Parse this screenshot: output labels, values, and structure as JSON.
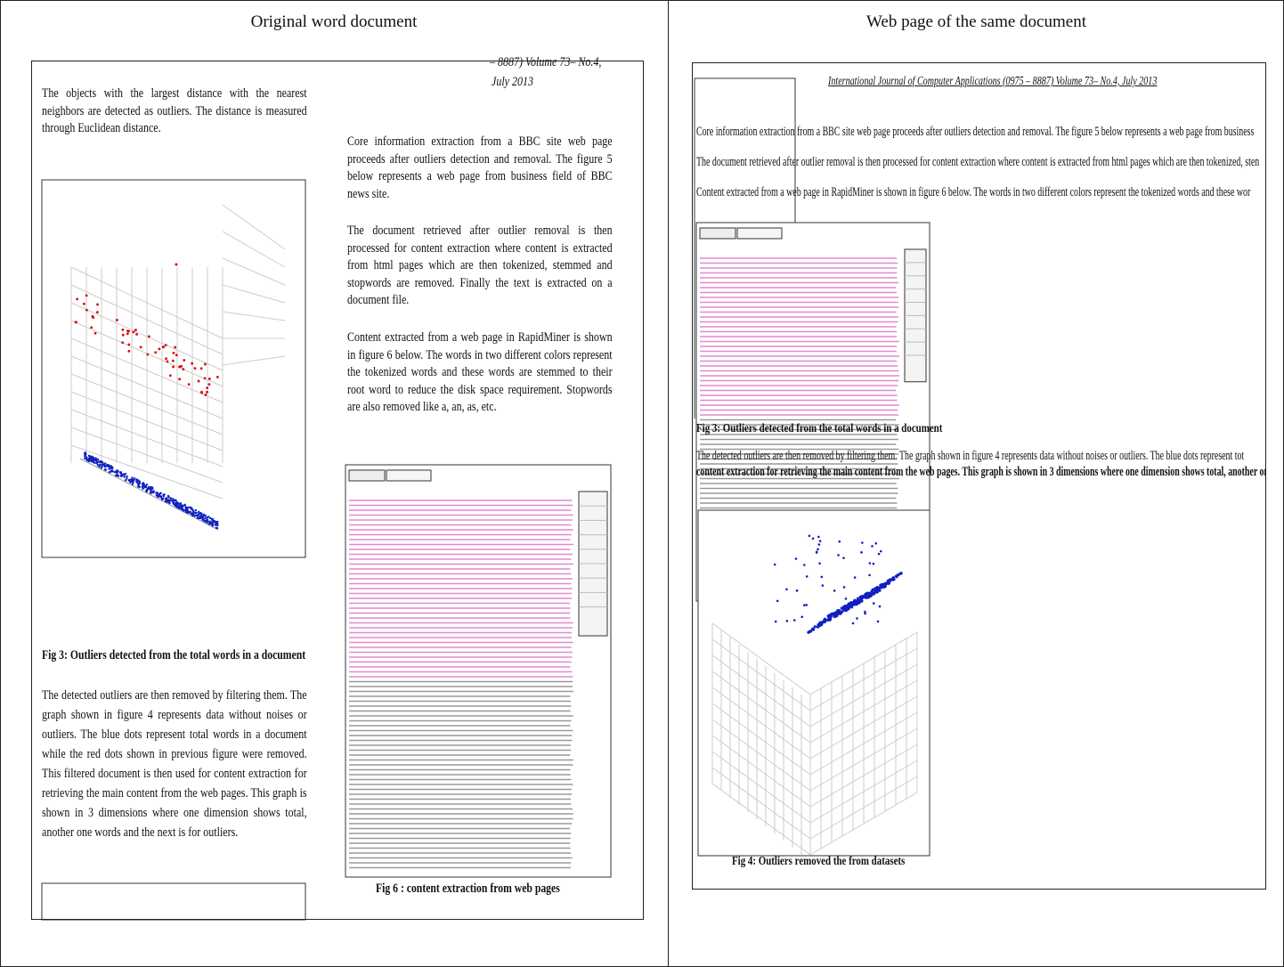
{
  "headings": [
    "Original word document",
    "Web page of the same document"
  ],
  "original": {
    "header_fragment": "– 8887) Volume 73– No.4,",
    "header_date": "July 2013",
    "left_paragraph": "The objects with the largest distance with the nearest neighbors are detected as outliers. The distance is measured through Euclidean distance.",
    "fig3_caption": "Fig 3: Outliers detected from the total words in a document",
    "left_paragraph2": "The detected outliers are then removed by filtering them. The graph shown in figure 4 represents data without noises or outliers. The blue dots represent total words in a document while the red dots shown in previous figure were removed. This filtered document is then used for content extraction for retrieving the main content from the web pages. This graph is shown in 3 dimensions where one dimension shows total, another one words and the next is for outliers.",
    "right_paragraphs": [
      "Core information extraction from a BBC site web page proceeds after outliers detection and removal. The figure 5 below represents a web page from business field of BBC news site.",
      "The document retrieved after outlier removal is then processed for content extraction where content is extracted from html pages which are then tokenized, stemmed and stopwords are removed. Finally the text is extracted on a document file.",
      "Content extracted from a web page in RapidMiner is shown in figure 6 below. The words in two different colors represent the tokenized words and these words are stemmed to their root word to reduce the disk space requirement. Stopwords are also removed like a, an, as, etc."
    ],
    "fig6_caption": "Fig 6 : content extraction from web pages"
  },
  "web": {
    "journal_header": "International Journal of Computer Applications (0975 – 8887) Volume 73– No.4, July 2013",
    "lines": [
      "Core information extraction from a BBC site web page proceeds after outliers detection and removal. The figure 5 below represents a web page from business",
      "The document retrieved after outlier removal is then processed for content extraction where content is extracted from html pages which are then tokenized, sten",
      "Content extracted from a web page in RapidMiner is shown in figure 6 below. The words in two different colors represent the tokenized words and these wor"
    ],
    "fig3_caption": "Fig 3: Outliers detected from the total words in a document",
    "lines2": [
      "The detected outliers are then removed by filtering them. The graph shown in figure 4 represents data without noises or outliers. The blue dots represent tot",
      "content extraction for retrieving the main content from the web pages. This graph is shown in 3 dimensions where one dimension shows total, another one wo"
    ],
    "fig4_caption": "Fig 4: Outliers removed the from datasets"
  }
}
